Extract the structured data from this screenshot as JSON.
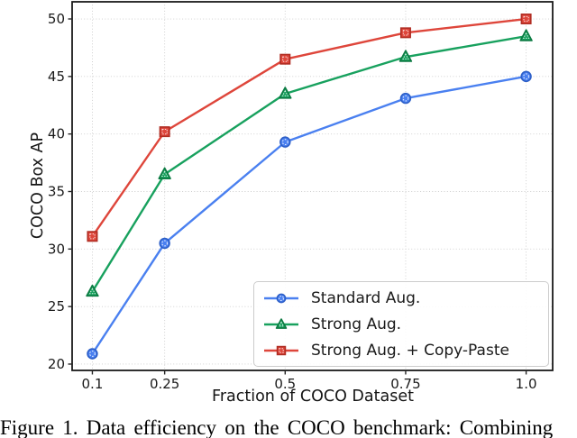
{
  "figure": {
    "caption": "Figure 1. Data efficiency on the COCO benchmark: Combining"
  },
  "chart_data": {
    "type": "line",
    "title": "",
    "xlabel": "Fraction of COCO Dataset",
    "ylabel": "COCO Box AP",
    "x": [
      0.1,
      0.25,
      0.5,
      0.75,
      1.0
    ],
    "x_tick_labels": [
      "0.1",
      "0.25",
      "0.5",
      "0.75",
      "1.0"
    ],
    "y_ticks": [
      20,
      25,
      30,
      35,
      40,
      45,
      50
    ],
    "xlim": [
      0.058,
      1.055
    ],
    "ylim": [
      19.45,
      51.49
    ],
    "grid": true,
    "grid_color": "#cccccc",
    "legend_position": "lower right",
    "series": [
      {
        "name": "Standard Aug.",
        "marker": "circle",
        "color": "#4a80f0",
        "edge_color": "#2d5fc7",
        "values": [
          20.9,
          30.5,
          39.3,
          43.1,
          45.0
        ]
      },
      {
        "name": "Strong Aug.",
        "marker": "triangle",
        "color": "#18a15e",
        "edge_color": "#0c7a42",
        "values": [
          26.3,
          36.5,
          43.5,
          46.7,
          48.5
        ]
      },
      {
        "name": "Strong Aug. + Copy-Paste",
        "marker": "square",
        "color": "#de463b",
        "edge_color": "#b02d23",
        "values": [
          31.1,
          40.2,
          46.5,
          48.8,
          50.0
        ]
      }
    ]
  }
}
